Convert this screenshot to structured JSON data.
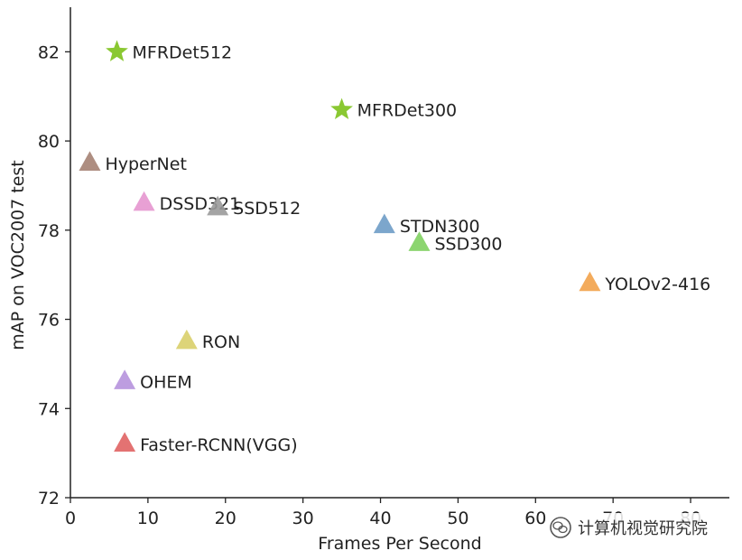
{
  "chart_data": {
    "type": "scatter",
    "title": "",
    "xlabel": "Frames Per Second",
    "ylabel": "mAP on VOC2007 test",
    "xlim": [
      0,
      85
    ],
    "ylim": [
      72,
      83
    ],
    "xticks": [
      0,
      10,
      20,
      30,
      40,
      50,
      60,
      70,
      80
    ],
    "yticks": [
      72,
      74,
      76,
      78,
      80,
      82
    ],
    "points": [
      {
        "name": "MFRDet512",
        "x": 6,
        "y": 82.0,
        "marker": "star",
        "color": "#8ac832"
      },
      {
        "name": "MFRDet300",
        "x": 35,
        "y": 80.7,
        "marker": "star",
        "color": "#8ac832"
      },
      {
        "name": "HyperNet",
        "x": 2.5,
        "y": 79.5,
        "marker": "triangle",
        "color": "#a58273"
      },
      {
        "name": "DSSD321",
        "x": 9.5,
        "y": 78.6,
        "marker": "triangle",
        "color": "#e596cf"
      },
      {
        "name": "SSD512",
        "x": 19,
        "y": 78.5,
        "marker": "triangle",
        "color": "#9a9a9a"
      },
      {
        "name": "STDN300",
        "x": 40.5,
        "y": 78.1,
        "marker": "triangle",
        "color": "#6e9cc7"
      },
      {
        "name": "SSD300",
        "x": 45,
        "y": 77.7,
        "marker": "triangle",
        "color": "#80d060"
      },
      {
        "name": "YOLOv2-416",
        "x": 67,
        "y": 76.8,
        "marker": "triangle",
        "color": "#f2a24a"
      },
      {
        "name": "RON",
        "x": 15,
        "y": 75.5,
        "marker": "triangle",
        "color": "#d9cf6a"
      },
      {
        "name": "OHEM",
        "x": 7,
        "y": 74.6,
        "marker": "triangle",
        "color": "#b692dd"
      },
      {
        "name": "Faster-RCNN(VGG)",
        "x": 7,
        "y": 73.2,
        "marker": "triangle",
        "color": "#e06363"
      }
    ]
  },
  "watermark": {
    "text": "计算机视觉研究院",
    "icon": "wechat-icon"
  }
}
